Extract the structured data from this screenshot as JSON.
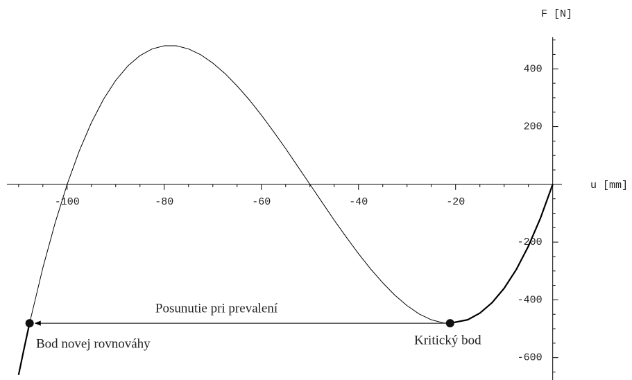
{
  "chart_data": {
    "type": "line",
    "xlabel": "u [mm]",
    "ylabel": "F [N]",
    "xlim": [
      -112.4,
      1.9
    ],
    "ylim": [
      -680,
      510
    ],
    "xticks": [
      -100,
      -80,
      -60,
      -40,
      -20
    ],
    "yticks": [
      -600,
      -400,
      -200,
      200,
      400
    ],
    "xticks_minor": [
      -110,
      -105,
      -95,
      -90,
      -85,
      -75,
      -70,
      -65,
      -55,
      -50,
      -45,
      -35,
      -30,
      -25,
      -15,
      -10,
      -5
    ],
    "yticks_minor": [
      -650,
      -550,
      -500,
      -450,
      -350,
      -300,
      -250,
      -150,
      -100,
      -50,
      50,
      100,
      150,
      250,
      300,
      350,
      450,
      500
    ],
    "color": "#000000",
    "series": [
      {
        "width": 2.2,
        "x": [
          -110,
          -109,
          -108,
          -107.73
        ],
        "values": [
          -660,
          -579,
          -501,
          -481
        ]
      },
      {
        "width": 1,
        "x": [
          -107.73,
          -107.5,
          -105,
          -102.5,
          -100,
          -97.5,
          -95,
          -92.5,
          -90,
          -87.5,
          -85,
          -82.5,
          -80,
          -77.5,
          -75,
          -72.5,
          -70,
          -67.5,
          -65,
          -62.5,
          -60,
          -57.5,
          -55,
          -52.5,
          -50,
          -47.5,
          -45,
          -42.5,
          -40,
          -37.5,
          -35,
          -32.5,
          -30,
          -27.5,
          -25,
          -22.5,
          -21.13
        ],
        "values": [
          -481,
          -464,
          -289,
          -135,
          0,
          116,
          214,
          295,
          360,
          410,
          446,
          469,
          480,
          480,
          469,
          449,
          420,
          384,
          341,
          293,
          240,
          183,
          124,
          62,
          0,
          -62,
          -124,
          -183,
          -240,
          -293,
          -341,
          -384,
          -420,
          -449,
          -469,
          -480,
          -481
        ]
      },
      {
        "width": 2.2,
        "x": [
          -21.13,
          -17.5,
          -15,
          -12.5,
          -10,
          -7.5,
          -5,
          -2.5,
          0
        ],
        "values": [
          -481,
          -469,
          -446,
          -410,
          -360,
          -295,
          -214,
          -116,
          0
        ]
      }
    ],
    "points": {
      "x": [
        -107.73,
        -21.13
      ],
      "values": [
        -481,
        -481
      ]
    },
    "annotations": {
      "arrow": "Posunutie pri prevalení",
      "left_point": "Bod novej rovnováhy",
      "right_point": "Kritický bod"
    }
  }
}
